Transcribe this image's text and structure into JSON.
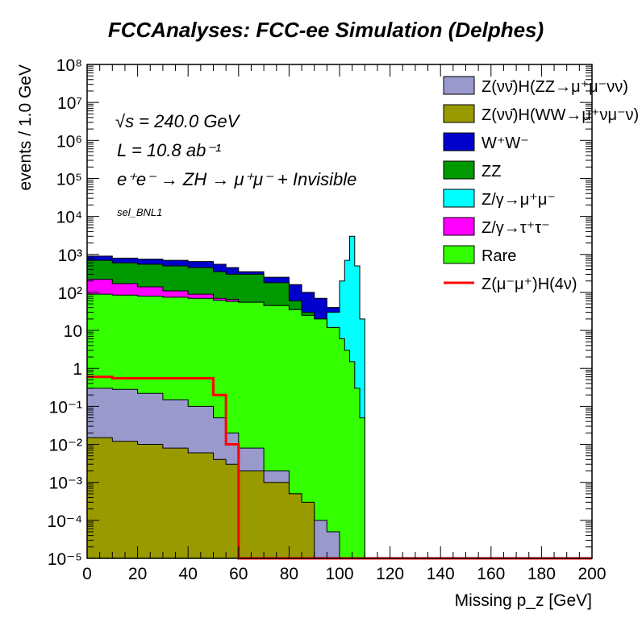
{
  "page": {
    "title": "FCCAnalyses: FCC-ee Simulation (Delphes)"
  },
  "chart_data": {
    "type": "area",
    "stacked": true,
    "log_y": true,
    "title": "FCCAnalyses: FCC-ee Simulation (Delphes)",
    "xlabel": "Missing p_z [GeV]",
    "ylabel": "events / 1.0 GeV",
    "xlim": [
      0,
      200
    ],
    "ylim": [
      1e-05,
      100000000
    ],
    "x_ticks": [
      "0",
      "20",
      "40",
      "60",
      "80",
      "100",
      "120",
      "140",
      "160",
      "180",
      "200"
    ],
    "y_ticks": [
      "10^-5",
      "10^-4",
      "10^-3",
      "10^-2",
      "10^-1",
      "1",
      "10",
      "10^2",
      "10^3",
      "10^4",
      "10^5",
      "10^6",
      "10^7",
      "10^8"
    ],
    "annotations": {
      "sqrt_s": "√s = 240.0 GeV",
      "lumi": "L = 10.8 ab⁻¹",
      "process": "e⁺e⁻ → ZH → μ⁺μ⁻ + Invisible",
      "selection": "sel_BNL1"
    },
    "legend_position": "top-right",
    "x": [
      0,
      10,
      20,
      30,
      40,
      50,
      55,
      60,
      70,
      80,
      85,
      90,
      95,
      100,
      102,
      104,
      106,
      108,
      110
    ],
    "series": [
      {
        "name": "Rare",
        "color": "#33ff00",
        "style": "fill",
        "values": [
          90,
          85,
          80,
          75,
          70,
          62,
          58,
          55,
          45,
          35,
          25,
          20,
          12,
          6,
          3,
          1.5,
          0.3,
          0.05,
          0
        ]
      },
      {
        "name": "Z/γ→τ⁺τ⁻",
        "color": "#ff00ff",
        "style": "fill",
        "values": [
          220,
          170,
          140,
          110,
          90,
          70,
          65,
          55,
          45,
          35,
          25,
          18,
          8,
          0,
          0,
          0,
          0,
          0,
          0
        ]
      },
      {
        "name": "Z/γ→μ⁺μ⁻",
        "color": "#00ffff",
        "style": "fill",
        "values": [
          0,
          0,
          0,
          0,
          0,
          0,
          0,
          0,
          0,
          0,
          5,
          10,
          30,
          200,
          700,
          3000,
          500,
          20,
          0
        ]
      },
      {
        "name": "ZZ",
        "color": "#009900",
        "style": "fill",
        "values": [
          700,
          600,
          550,
          500,
          450,
          350,
          300,
          300,
          180,
          60,
          30,
          20,
          10,
          0,
          0,
          0,
          0,
          0,
          0
        ]
      },
      {
        "name": "W⁺W⁻",
        "color": "#0000cc",
        "style": "fill",
        "values": [
          900,
          800,
          750,
          700,
          650,
          550,
          450,
          350,
          250,
          160,
          100,
          70,
          40,
          0,
          0,
          0,
          0,
          0,
          0
        ]
      },
      {
        "name": "Z(νν̄)H(WW→μ⁺νμ⁻ν)",
        "color": "#999900",
        "style": "fill",
        "values": [
          0.015,
          0.012,
          0.01,
          0.008,
          0.006,
          0.004,
          0.003,
          0.002,
          0.001,
          0.0005,
          0.0003,
          0,
          0,
          0,
          0,
          0,
          0,
          0,
          0
        ]
      },
      {
        "name": "Z(νν̄)H(ZZ→μ⁺μ⁻νν)",
        "color": "#9999cc",
        "style": "fill",
        "values": [
          0.3,
          0.28,
          0.22,
          0.15,
          0.1,
          0.05,
          0.02,
          0.008,
          0.002,
          0.0005,
          0.0002,
          0.0001,
          5e-05,
          0,
          0,
          0,
          0,
          0,
          0
        ]
      },
      {
        "name": "Z(μ⁻μ⁺)H(4ν)",
        "color": "#ff0000",
        "style": "line",
        "values": [
          0.6,
          0.55,
          0.55,
          0.55,
          0.55,
          0.2,
          0.01,
          1e-05,
          1e-05,
          1e-05,
          1e-05,
          1e-05,
          1e-05,
          1e-05,
          1e-05,
          1e-05,
          1e-05,
          1e-05,
          1e-05
        ]
      }
    ]
  }
}
